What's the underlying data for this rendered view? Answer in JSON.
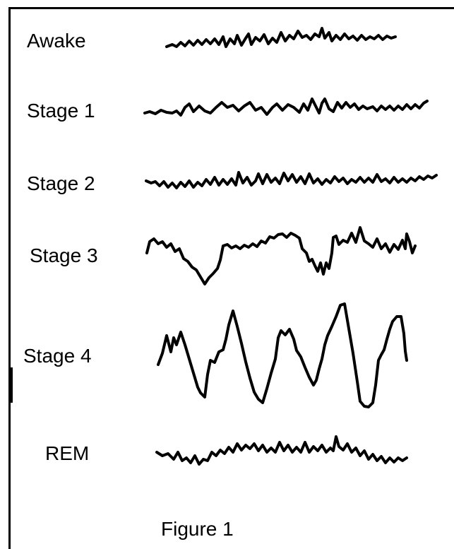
{
  "figure": {
    "rows": [
      {
        "label": "Awake"
      },
      {
        "label": "Stage 1"
      },
      {
        "label": "Stage 2"
      },
      {
        "label": "Stage 3"
      },
      {
        "label": "Stage 4"
      },
      {
        "label": "REM"
      }
    ],
    "caption": "Figure 1"
  }
}
